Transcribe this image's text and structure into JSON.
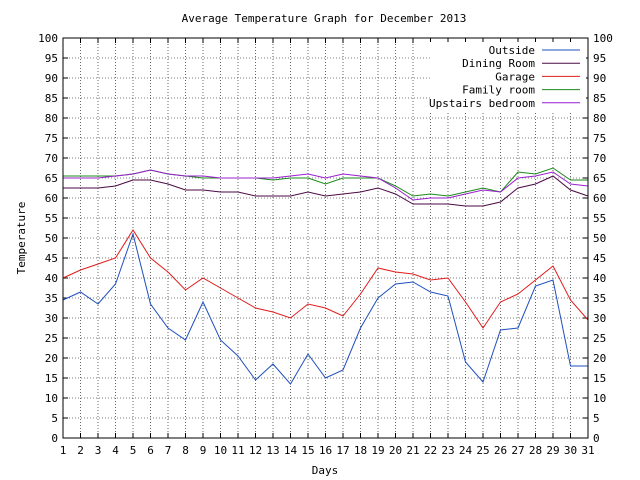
{
  "chart_data": {
    "type": "line",
    "title": "Average Temperature Graph for December 2013",
    "xlabel": "Days",
    "ylabel": "Temperature",
    "xlim": [
      1,
      31
    ],
    "ylim": [
      0,
      100
    ],
    "y_step": 5,
    "grid": true,
    "legend_position": "top-right",
    "mirror_y_axis": true,
    "x": [
      1,
      2,
      3,
      4,
      5,
      6,
      7,
      8,
      9,
      10,
      11,
      12,
      13,
      14,
      15,
      16,
      17,
      18,
      19,
      20,
      21,
      22,
      23,
      24,
      25,
      26,
      27,
      28,
      29,
      30,
      31
    ],
    "series": [
      {
        "name": "Outside",
        "color": "#1f4fbf",
        "values": [
          34.5,
          36.5,
          33.5,
          38.5,
          51,
          33.5,
          27.5,
          24.5,
          34,
          24.5,
          20.5,
          14.5,
          18.5,
          13.5,
          21,
          15,
          17,
          27.5,
          35,
          38.5,
          39,
          36.5,
          35.5,
          19,
          14,
          27,
          27.5,
          38,
          39.5,
          18,
          18
        ]
      },
      {
        "name": "Dining Room",
        "color": "#4b0a46",
        "values": [
          62.5,
          62.5,
          62.5,
          63,
          64.5,
          64.5,
          63.5,
          62,
          62,
          61.5,
          61.5,
          60.5,
          60.5,
          60.5,
          61.5,
          60.5,
          61,
          61.5,
          62.5,
          61,
          58.5,
          58.5,
          58.5,
          58,
          58,
          59,
          62.5,
          63.5,
          65.5,
          62,
          60.5
        ]
      },
      {
        "name": "Garage",
        "color": "#e01c1c",
        "values": [
          40,
          42,
          43.5,
          45,
          52,
          45,
          41.5,
          37,
          40,
          37.5,
          35,
          32.5,
          31.5,
          30,
          33.5,
          32.5,
          30.5,
          36,
          42.5,
          41.5,
          41,
          39.5,
          40,
          34,
          27.5,
          34,
          36,
          39.5,
          43,
          34.5,
          29.5
        ]
      },
      {
        "name": "Family room",
        "color": "#1a8a1a",
        "values": [
          65.5,
          65.5,
          65.5,
          65.5,
          66,
          67,
          66,
          65.5,
          65,
          65,
          65,
          65,
          64.5,
          65,
          65,
          63.5,
          65,
          65,
          65,
          63,
          60.5,
          61,
          60.5,
          61.5,
          62.5,
          61.5,
          66.5,
          66,
          67.5,
          64.5,
          64.5
        ]
      },
      {
        "name": "Upstairs bedroom",
        "color": "#9b1fd1",
        "values": [
          65,
          65,
          65,
          65.5,
          66,
          67,
          66,
          65.5,
          65.5,
          65,
          65,
          65,
          65,
          65.5,
          66,
          65,
          66,
          65.5,
          65,
          62.5,
          59.5,
          60,
          60,
          61,
          62,
          61.5,
          65,
          65.5,
          66.5,
          63.5,
          63
        ]
      }
    ]
  }
}
